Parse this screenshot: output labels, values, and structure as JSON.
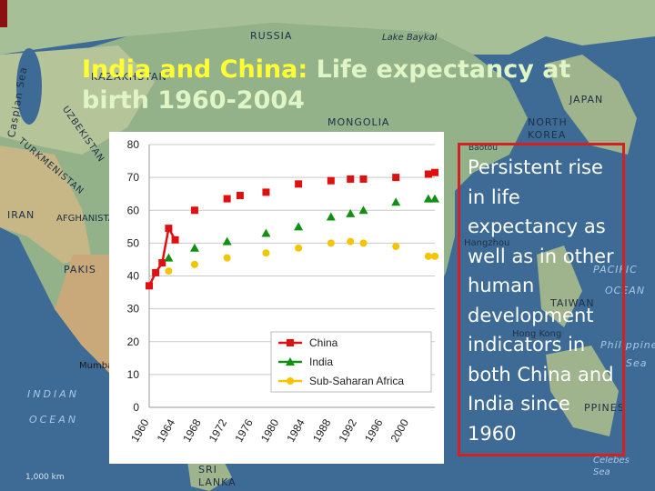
{
  "title": {
    "part1": "India and China:",
    "part2": " Life expectancy at birth 1960-2004"
  },
  "note": {
    "text": "Persistent rise in life expectancy as well as in other human development indicators in both China and India since 1960"
  },
  "map_labels": [
    {
      "key": "russia",
      "text": "RUSSIA"
    },
    {
      "key": "lake_baykal",
      "text": "Lake Baykal"
    },
    {
      "key": "caspian_sea",
      "text": "Caspian Sea"
    },
    {
      "key": "kazakhstan",
      "text": "KAZAKHSTAN"
    },
    {
      "key": "mongolia",
      "text": "MONGOLIA"
    },
    {
      "key": "japan",
      "text": "JAPAN"
    },
    {
      "key": "north_korea",
      "text": "NORTH KOREA"
    },
    {
      "key": "uzbekistan",
      "text": "UZBEKISTAN"
    },
    {
      "key": "turkmenistan",
      "text": "TURKMENISTAN"
    },
    {
      "key": "iran",
      "text": "IRAN"
    },
    {
      "key": "afghanistan",
      "text": "AFGHANISTAN"
    },
    {
      "key": "pakistan",
      "text": "PAKIS"
    },
    {
      "key": "baotou",
      "text": "Baotou"
    },
    {
      "key": "hangzhou",
      "text": "Hangzhou"
    },
    {
      "key": "pacific",
      "text": "PACIFIC"
    },
    {
      "key": "ocean_right",
      "text": "OCEAN"
    },
    {
      "key": "taiwan",
      "text": "TAIWAN"
    },
    {
      "key": "hong_kong",
      "text": "Hong Kong"
    },
    {
      "key": "philippine",
      "text": "Philippine"
    },
    {
      "key": "sea_right",
      "text": "Sea"
    },
    {
      "key": "mumbai",
      "text": "Mumba"
    },
    {
      "key": "indian",
      "text": "INDIAN"
    },
    {
      "key": "ocean_left",
      "text": "OCEAN"
    },
    {
      "key": "sri_lanka",
      "text": "SRI LANKA"
    },
    {
      "key": "philippines",
      "text": "PPINES"
    },
    {
      "key": "celebes",
      "text": "Celebes Sea"
    },
    {
      "key": "scale",
      "text": "1,000 km"
    }
  ],
  "colors": {
    "china": "#e01010",
    "india": "#109010",
    "ssa": "#f4c400",
    "grid": "#c8c8c8"
  },
  "chart_data": {
    "type": "line",
    "title": "",
    "xlabel": "",
    "ylabel": "",
    "ylim": [
      0,
      80
    ],
    "yticks": [
      0,
      10,
      20,
      30,
      40,
      50,
      60,
      70,
      80
    ],
    "xlim": [
      1960,
      2004
    ],
    "xticks": [
      1960,
      1964,
      1968,
      1972,
      1976,
      1980,
      1984,
      1988,
      1992,
      1996,
      2000
    ],
    "grid": true,
    "legend_position": "bottom-right",
    "series": [
      {
        "name": "China",
        "marker": "square",
        "x": [
          1960,
          1961,
          1962,
          1963,
          1964,
          1967,
          1972,
          1974,
          1978,
          1983,
          1988,
          1991,
          1993,
          1998,
          2003,
          2004
        ],
        "y": [
          37,
          41,
          44,
          54.5,
          51,
          60,
          63.5,
          64.5,
          65.5,
          68,
          69,
          69.5,
          69.5,
          70,
          71,
          71.5
        ],
        "connected_through": 1964
      },
      {
        "name": "India",
        "marker": "triangle",
        "x": [
          1963,
          1967,
          1972,
          1978,
          1983,
          1988,
          1991,
          1993,
          1998,
          2003,
          2004
        ],
        "y": [
          45.5,
          48.5,
          50.5,
          53,
          55,
          58,
          59,
          60,
          62.5,
          63.5,
          63.5
        ],
        "connected_through": null
      },
      {
        "name": "Sub-Saharan Africa",
        "marker": "circle",
        "x": [
          1963,
          1967,
          1972,
          1978,
          1983,
          1988,
          1991,
          1993,
          1998,
          2003,
          2004
        ],
        "y": [
          41.5,
          43.5,
          45.5,
          47,
          48.5,
          50,
          50.5,
          50,
          49,
          46,
          46
        ],
        "connected_through": null
      }
    ]
  }
}
